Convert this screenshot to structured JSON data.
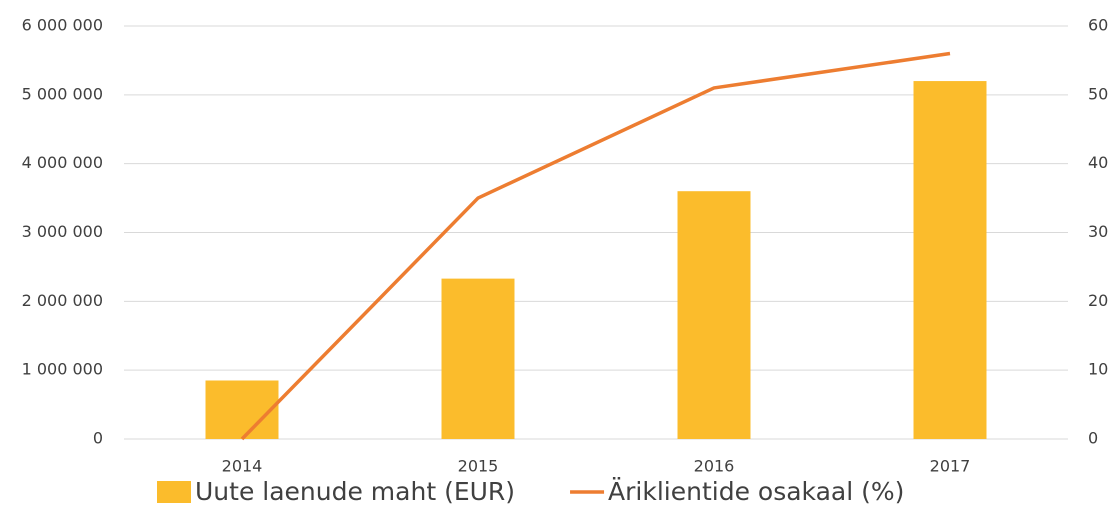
{
  "chart_data": {
    "type": "combo",
    "categories": [
      "2014",
      "2015",
      "2016",
      "2017"
    ],
    "series": [
      {
        "name": "Uute laenude maht (EUR)",
        "type": "bar",
        "color": "#fbbc2c",
        "values": [
          850000,
          2330000,
          3600000,
          5200000
        ]
      },
      {
        "name": "Äriklientide osakaal (%)",
        "type": "line",
        "axis": "y2",
        "color": "#ed7d31",
        "values": [
          0,
          35,
          51,
          56
        ]
      }
    ],
    "ylim": [
      0,
      6000000
    ],
    "yticks": [
      0,
      {
        "value": 1000000,
        "label": "1 000 000"
      },
      {
        "value": 2000000,
        "label": "2 000 000"
      },
      {
        "value": 3000000,
        "label": "3 000 000"
      },
      {
        "value": 4000000,
        "label": "4 000 000"
      },
      {
        "value": 5000000,
        "label": "5 000 000"
      },
      {
        "value": 6000000,
        "label": "6 000 000"
      }
    ],
    "y2lim": [
      0,
      60
    ],
    "y2ticks": [
      0,
      10,
      20,
      30,
      40,
      50,
      60
    ],
    "grid": true,
    "legend": "bottom"
  }
}
